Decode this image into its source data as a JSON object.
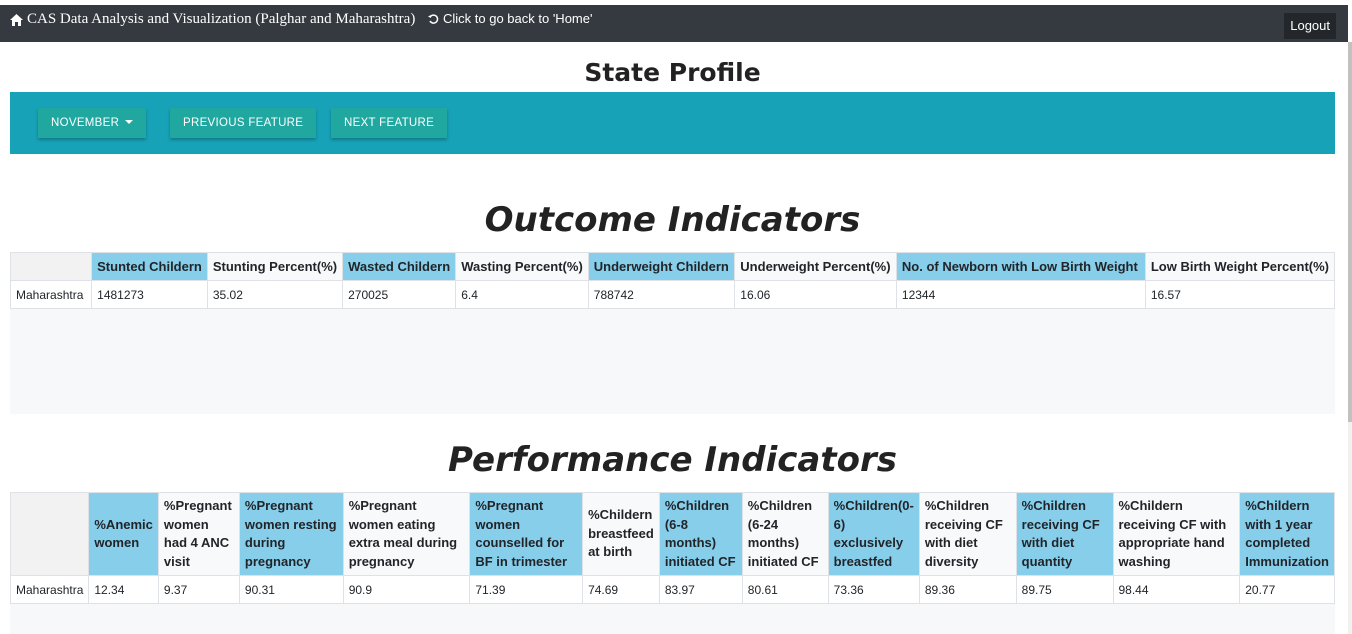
{
  "navbar": {
    "brand": "CAS Data Analysis and Visualization (Palghar and Maharashtra)",
    "home_link": "Click to go back to 'Home'",
    "logout": "Logout"
  },
  "page_title": "State Profile",
  "feature_bar": {
    "month": "NOVEMBER",
    "previous": "PREVIOUS FEATURE",
    "next": "NEXT FEATURE"
  },
  "outcome": {
    "title": "Outcome Indicators",
    "headers": [
      "",
      "Stunted Childern",
      "Stunting Percent(%)",
      "Wasted Childern",
      "Wasting Percent(%)",
      "Underweight Childern",
      "Underweight Percent(%)",
      "No. of Newborn with Low Birth Weight",
      "Low Birth Weight Percent(%)"
    ],
    "row": [
      "Maharashtra",
      "1481273",
      "35.02",
      "270025",
      "6.4",
      "788742",
      "16.06",
      "12344",
      "16.57"
    ]
  },
  "performance": {
    "title": "Performance Indicators",
    "headers": [
      "",
      "%Anemic women",
      "%Pregnant women had 4 ANC visit",
      "%Pregnant women resting during pregnancy",
      "%Pregnant women eating extra meal during pregnancy",
      "%Pregnant women counselled for BF in trimester",
      "%Childern breastfeed at birth",
      "%Children (6-8 months) initiated CF",
      "%Children (6-24 months) initiated CF",
      "%Children(0-6) exclusively breastfed",
      "%Children receiving CF with diet diversity",
      "%Children receiving CF with diet quantity",
      "%Childern receiving CF with appropriate hand washing",
      "%Childern with 1 year completed Immunization"
    ],
    "row": [
      "Maharashtra",
      "12.34",
      "9.37",
      "90.31",
      "90.9",
      "71.39",
      "74.69",
      "83.97",
      "80.61",
      "73.36",
      "89.36",
      "89.75",
      "98.44",
      "20.77"
    ]
  },
  "colors": {
    "navbar": "#343a40",
    "feature_bar": "#17a2b8",
    "feature_button": "#20a8a0",
    "highlight_header": "#87ceeb"
  },
  "icons": {
    "brand": "home-icon",
    "home_link": "undo-icon"
  }
}
